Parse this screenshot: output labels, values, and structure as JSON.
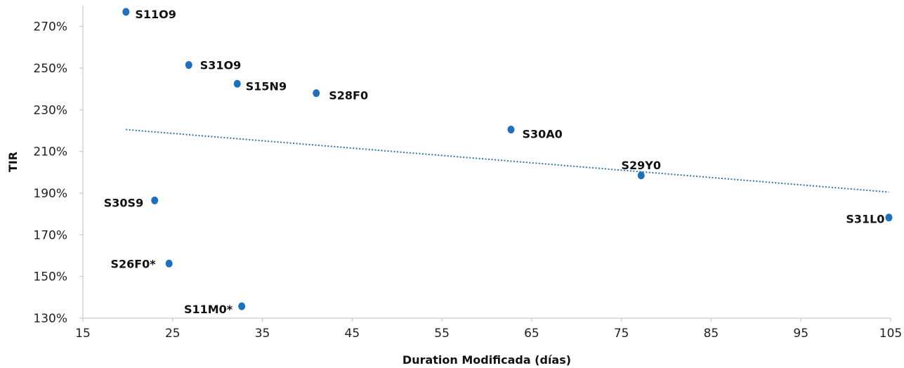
{
  "chart_data": {
    "type": "scatter",
    "title": "",
    "xlabel": "Duration Modificada (días)",
    "ylabel": "TIR",
    "xlim": [
      15,
      105
    ],
    "ylim": [
      130,
      280
    ],
    "x_ticks": [
      "15",
      "25",
      "35",
      "45",
      "55",
      "65",
      "75",
      "85",
      "95",
      "105"
    ],
    "y_ticks": [
      "130%",
      "150%",
      "170%",
      "190%",
      "210%",
      "230%",
      "250%",
      "270%"
    ],
    "grid": false,
    "marker_color": "#1f6fbf",
    "trendline_color": "#2e75b6",
    "trendline": {
      "type": "dotted",
      "x": [
        19.8,
        104.8
      ],
      "y": [
        220.5,
        190.5
      ]
    },
    "points": [
      {
        "label": "S11O9",
        "x": 19.8,
        "y": 277
      },
      {
        "label": "S31O9",
        "x": 26.8,
        "y": 251.5
      },
      {
        "label": "S15N9",
        "x": 32.2,
        "y": 242.5
      },
      {
        "label": "S28F0",
        "x": 41.0,
        "y": 238
      },
      {
        "label": "S30A0",
        "x": 62.7,
        "y": 220.5
      },
      {
        "label": "S29Y0",
        "x": 77.2,
        "y": 198.5
      },
      {
        "label": "S30S9",
        "x": 23.0,
        "y": 186.5
      },
      {
        "label": "S31L0",
        "x": 104.8,
        "y": 178.3
      },
      {
        "label": "S26F0*",
        "x": 24.6,
        "y": 156.2
      },
      {
        "label": "S11M0*",
        "x": 32.7,
        "y": 135.7
      }
    ]
  }
}
